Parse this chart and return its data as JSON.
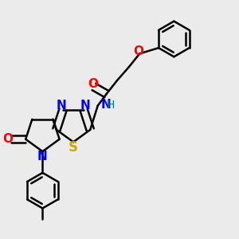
{
  "bg_color": "#ebebeb",
  "bond_color": "#000000",
  "bond_width": 1.8,
  "fig_size": [
    3.0,
    3.0
  ],
  "dpi": 100,
  "colors": {
    "N": "#0000ff",
    "O": "#ff0000",
    "S": "#ccaa00",
    "H": "#008080",
    "C": "#000000"
  }
}
